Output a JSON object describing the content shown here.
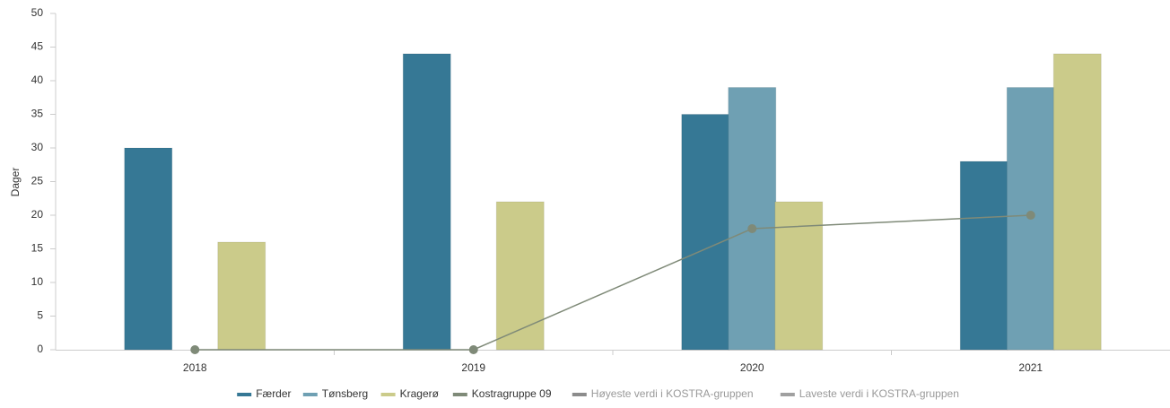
{
  "chart_data": {
    "type": "bar",
    "y_label": "Dager",
    "categories": [
      "2018",
      "2019",
      "2020",
      "2021"
    ],
    "series": [
      {
        "name": "Færder",
        "type": "bar",
        "color": "#367895",
        "values": [
          30,
          44,
          35,
          28
        ]
      },
      {
        "name": "Tønsberg",
        "type": "bar",
        "color": "#6fa0b3",
        "values": [
          null,
          null,
          39,
          39
        ]
      },
      {
        "name": "Kragerø",
        "type": "bar",
        "color": "#cbcb8a",
        "values": [
          16,
          22,
          22,
          44
        ]
      },
      {
        "name": "Kostragruppe 09",
        "type": "line",
        "color": "#7f8a78",
        "values": [
          0,
          0,
          18,
          20
        ]
      },
      {
        "name": "Høyeste verdi i KOSTRA-gruppen",
        "type": "line",
        "color": "#8c8c8c",
        "values": [
          null,
          null,
          null,
          null
        ]
      },
      {
        "name": "Laveste verdi i KOSTRA-gruppen",
        "type": "line",
        "color": "#a0a0a0",
        "values": [
          null,
          null,
          null,
          null
        ]
      }
    ],
    "ylim": [
      0,
      50
    ],
    "yticks": [
      0,
      5,
      10,
      15,
      20,
      25,
      30,
      35,
      40,
      45,
      50
    ],
    "grid": false
  }
}
